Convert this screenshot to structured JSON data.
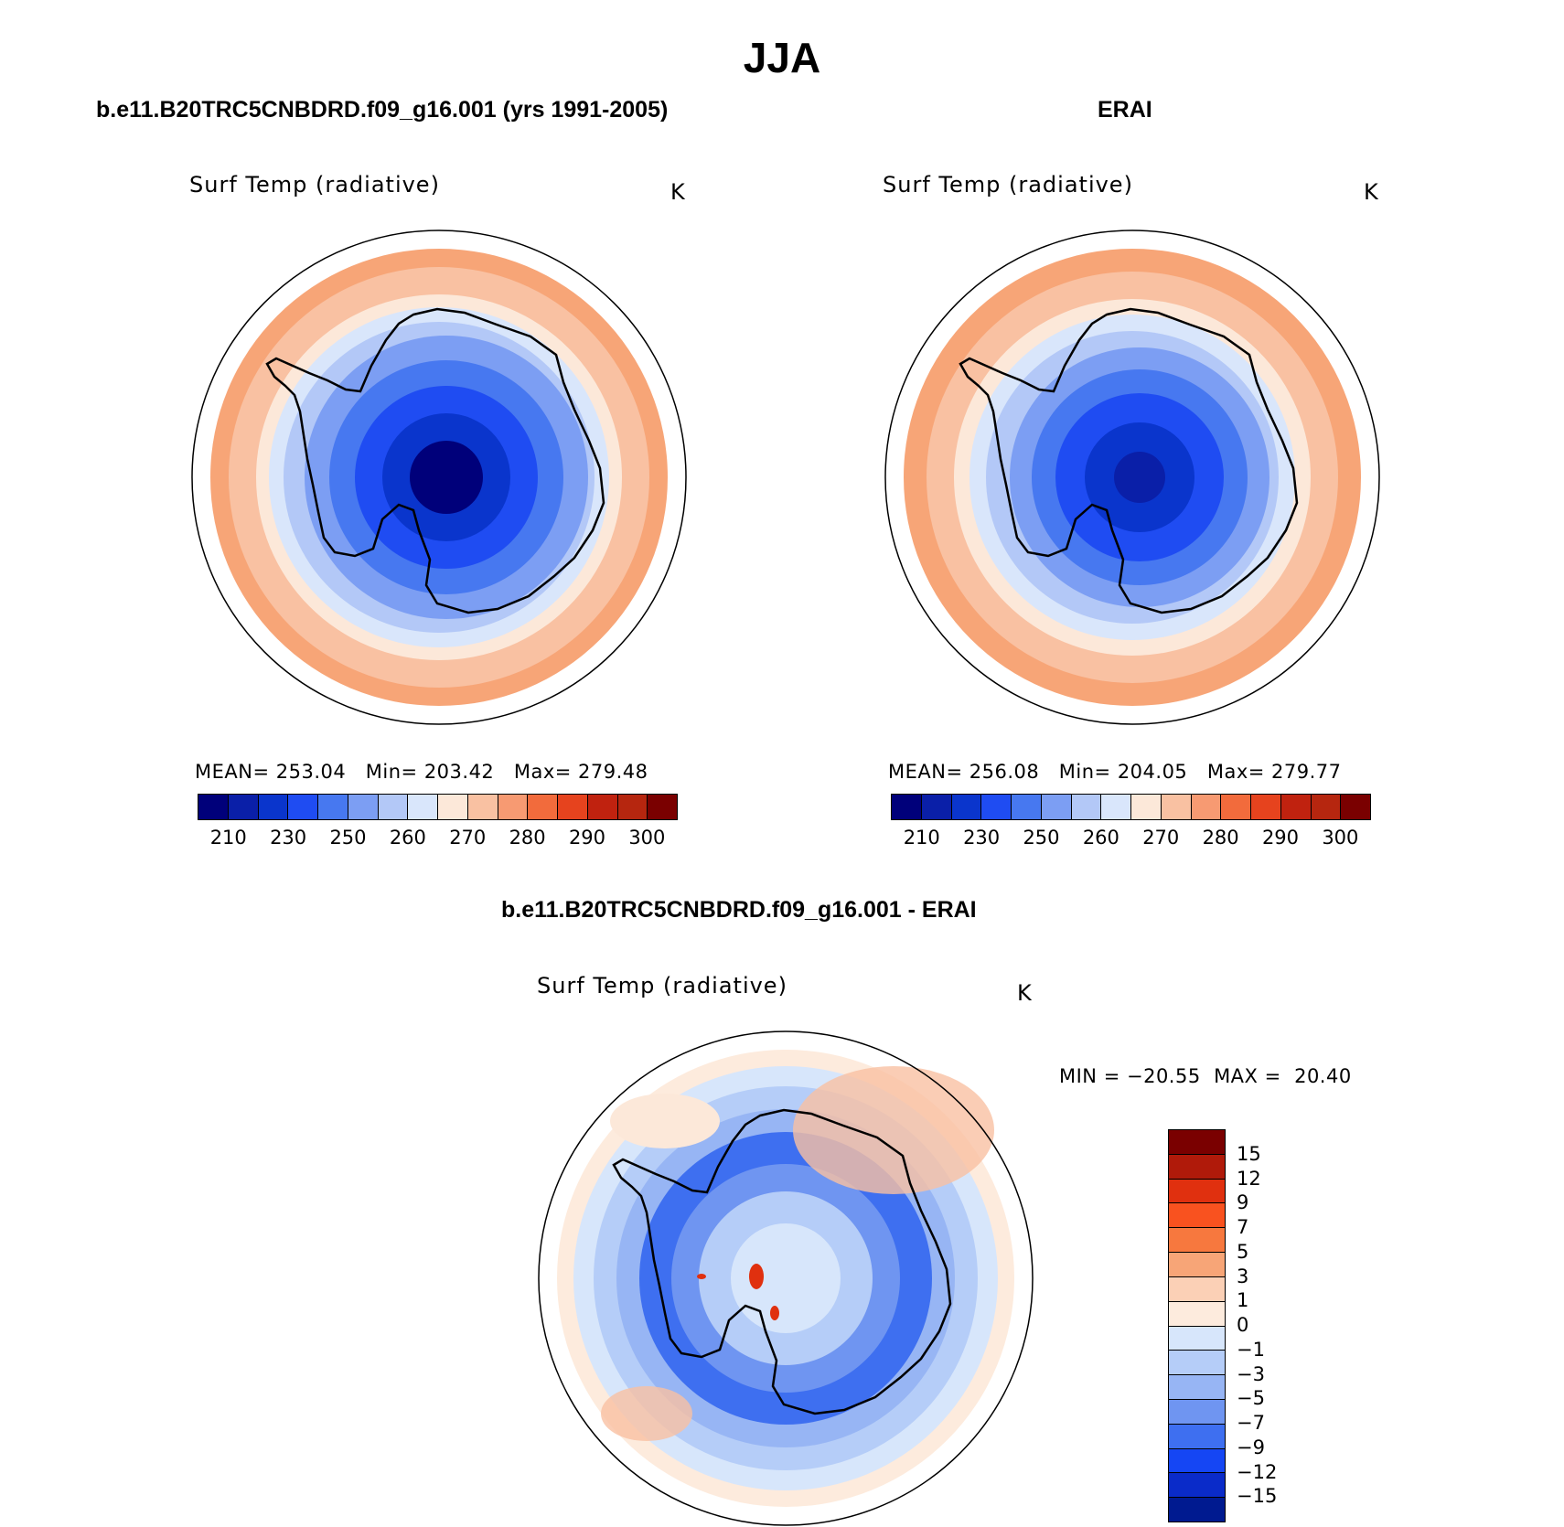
{
  "figure": {
    "title": "JJA"
  },
  "panels": {
    "model": {
      "title": "b.e11.B20TRC5CNBDRD.f09_g16.001 (yrs 1991-2005)",
      "variable": "Surf Temp (radiative)",
      "units": "K",
      "stats": {
        "mean_label": "MEAN=",
        "mean": "253.04",
        "min_label": "Min=",
        "min": "203.42",
        "max_label": "Max=",
        "max": "279.48"
      }
    },
    "obs": {
      "title": "ERAI",
      "variable": "Surf Temp (radiative)",
      "units": "K",
      "stats": {
        "mean_label": "MEAN=",
        "mean": "256.08",
        "min_label": "Min=",
        "min": "204.05",
        "max_label": "Max=",
        "max": "279.77"
      }
    },
    "diff": {
      "title": "b.e11.B20TRC5CNBDRD.f09_g16.001 - ERAI",
      "variable": "Surf Temp (radiative)",
      "units": "K",
      "minmax": {
        "min_label": "MIN =",
        "min": "−20.55",
        "max_label": "MAX =",
        "max": "20.40"
      }
    }
  },
  "colorbars": {
    "abs": {
      "colors": [
        "#00007a",
        "#0a1fa8",
        "#0a35cc",
        "#1f4cf2",
        "#4778f0",
        "#7c9ef3",
        "#b3c8f7",
        "#d9e6fb",
        "#fce8d9",
        "#f9c1a2",
        "#f79a72",
        "#f26b3c",
        "#e6431e",
        "#c0220f",
        "#b6260f",
        "#7a0000"
      ],
      "ticks": [
        "210",
        "230",
        "250",
        "260",
        "270",
        "280",
        "290",
        "300"
      ]
    },
    "diff": {
      "colors": [
        "#7a0000",
        "#b01a0a",
        "#e0300f",
        "#f9521f",
        "#f7783e",
        "#f7a577",
        "#fbd0b6",
        "#fdebdd",
        "#d7e6fb",
        "#b5cdf8",
        "#97b5f4",
        "#6f95f1",
        "#3e6ff0",
        "#1546f4",
        "#0a2bc9",
        "#001a90"
      ],
      "ticks": [
        "15",
        "12",
        "9",
        "7",
        "5",
        "3",
        "1",
        "0",
        "−1",
        "−3",
        "−5",
        "−7",
        "−9",
        "−12",
        "−15"
      ]
    }
  },
  "map_layers": {
    "model": [
      {
        "r": 250,
        "color": "#f7a577"
      },
      {
        "r": 230,
        "color": "#f9c1a2"
      },
      {
        "r": 200,
        "color": "#fce8d9"
      },
      {
        "r": 186,
        "color": "#d9e6fb"
      },
      {
        "r": 170,
        "color": "#b3c8f7"
      },
      {
        "r": 155,
        "color": "#7c9ef3"
      },
      {
        "r": 128,
        "color": "#4778f0"
      },
      {
        "r": 100,
        "color": "#1f4cf2"
      },
      {
        "r": 70,
        "color": "#0a35cc"
      },
      {
        "r": 40,
        "color": "#00007a"
      }
    ],
    "obs": [
      {
        "r": 250,
        "color": "#f7a577"
      },
      {
        "r": 225,
        "color": "#f9c1a2"
      },
      {
        "r": 195,
        "color": "#fce8d9"
      },
      {
        "r": 178,
        "color": "#d9e6fb"
      },
      {
        "r": 160,
        "color": "#b3c8f7"
      },
      {
        "r": 142,
        "color": "#7c9ef3"
      },
      {
        "r": 118,
        "color": "#4778f0"
      },
      {
        "r": 92,
        "color": "#1f4cf2"
      },
      {
        "r": 60,
        "color": "#0a35cc"
      },
      {
        "r": 28,
        "color": "#0a1fa8"
      }
    ],
    "diff": [
      {
        "r": 250,
        "color": "#fdebdd"
      },
      {
        "r": 232,
        "color": "#d7e6fb"
      },
      {
        "r": 210,
        "color": "#b5cdf8"
      },
      {
        "r": 185,
        "color": "#97b5f4"
      },
      {
        "r": 160,
        "color": "#3e6ff0"
      },
      {
        "r": 125,
        "color": "#6f95f1"
      },
      {
        "r": 95,
        "color": "#b5cdf8"
      },
      {
        "r": 60,
        "color": "#d7e6fb"
      }
    ]
  }
}
